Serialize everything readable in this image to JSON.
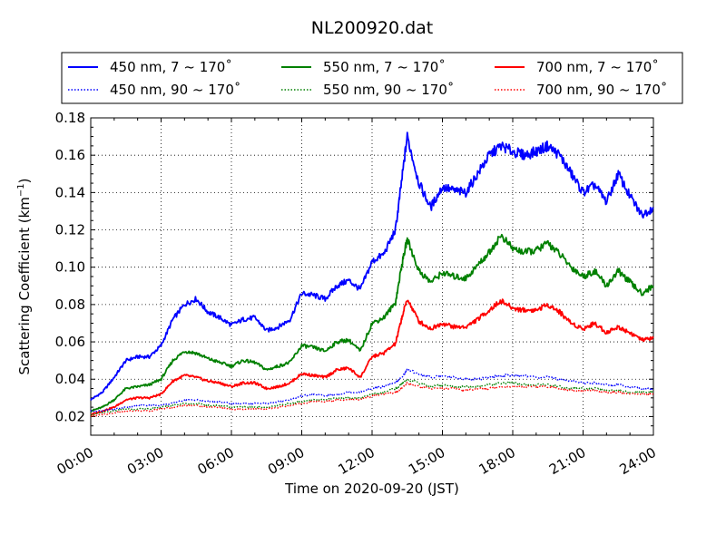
{
  "chart_data": {
    "type": "line",
    "title": "NL200920.dat",
    "xlabel": "Time on 2020-09-20 (JST)",
    "ylabel_main": "Scattering Coefficient (km",
    "ylabel_sup": "−1",
    "ylabel_close": ")",
    "xlim": [
      0,
      24
    ],
    "ylim": [
      0.01,
      0.18
    ],
    "grid": true,
    "legend_placement": "top, above plot",
    "xticks": [
      {
        "value": 0,
        "label": "00:00"
      },
      {
        "value": 3,
        "label": "03:00"
      },
      {
        "value": 6,
        "label": "06:00"
      },
      {
        "value": 9,
        "label": "09:00"
      },
      {
        "value": 12,
        "label": "12:00"
      },
      {
        "value": 15,
        "label": "15:00"
      },
      {
        "value": 18,
        "label": "18:00"
      },
      {
        "value": 21,
        "label": "21:00"
      },
      {
        "value": 24,
        "label": "24:00"
      }
    ],
    "yticks": [
      {
        "value": 0.02,
        "label": "0.02"
      },
      {
        "value": 0.04,
        "label": "0.04"
      },
      {
        "value": 0.06,
        "label": "0.06"
      },
      {
        "value": 0.08,
        "label": "0.08"
      },
      {
        "value": 0.1,
        "label": "0.10"
      },
      {
        "value": 0.12,
        "label": "0.12"
      },
      {
        "value": 0.14,
        "label": "0.14"
      },
      {
        "value": 0.16,
        "label": "0.16"
      },
      {
        "value": 0.18,
        "label": "0.18"
      }
    ],
    "x": [
      0,
      0.5,
      1,
      1.5,
      2,
      2.5,
      3,
      3.5,
      4,
      4.5,
      5,
      5.5,
      6,
      6.5,
      7,
      7.5,
      8,
      8.5,
      9,
      9.5,
      10,
      10.5,
      11,
      11.5,
      12,
      12.5,
      13,
      13.25,
      13.5,
      14,
      14.5,
      15,
      15.5,
      16,
      16.5,
      17,
      17.5,
      18,
      18.5,
      19,
      19.5,
      20,
      20.5,
      21,
      21.5,
      22,
      22.5,
      23,
      23.5,
      24
    ],
    "series": [
      {
        "name": "450 nm, 7 ~ 170°",
        "color": "#0000ff",
        "style": "solid",
        "values": [
          0.029,
          0.033,
          0.041,
          0.05,
          0.052,
          0.052,
          0.058,
          0.072,
          0.08,
          0.083,
          0.076,
          0.073,
          0.069,
          0.072,
          0.073,
          0.066,
          0.068,
          0.072,
          0.086,
          0.085,
          0.083,
          0.09,
          0.093,
          0.088,
          0.103,
          0.107,
          0.12,
          0.145,
          0.17,
          0.145,
          0.132,
          0.143,
          0.141,
          0.14,
          0.15,
          0.16,
          0.165,
          0.162,
          0.16,
          0.162,
          0.165,
          0.16,
          0.15,
          0.14,
          0.144,
          0.135,
          0.15,
          0.138,
          0.128,
          0.132
        ]
      },
      {
        "name": "550 nm, 7 ~ 170°",
        "color": "#008000",
        "style": "solid",
        "values": [
          0.023,
          0.025,
          0.029,
          0.035,
          0.036,
          0.037,
          0.04,
          0.05,
          0.055,
          0.054,
          0.051,
          0.049,
          0.047,
          0.05,
          0.049,
          0.045,
          0.047,
          0.049,
          0.058,
          0.057,
          0.055,
          0.06,
          0.061,
          0.055,
          0.07,
          0.073,
          0.081,
          0.1,
          0.115,
          0.098,
          0.092,
          0.097,
          0.095,
          0.094,
          0.101,
          0.108,
          0.117,
          0.11,
          0.108,
          0.109,
          0.113,
          0.107,
          0.1,
          0.095,
          0.098,
          0.09,
          0.098,
          0.092,
          0.086,
          0.09
        ]
      },
      {
        "name": "700 nm, 7 ~ 170°",
        "color": "#ff0000",
        "style": "solid",
        "values": [
          0.021,
          0.023,
          0.025,
          0.029,
          0.03,
          0.03,
          0.032,
          0.039,
          0.042,
          0.041,
          0.039,
          0.038,
          0.036,
          0.038,
          0.038,
          0.035,
          0.036,
          0.038,
          0.043,
          0.042,
          0.041,
          0.045,
          0.046,
          0.041,
          0.052,
          0.054,
          0.059,
          0.072,
          0.083,
          0.071,
          0.067,
          0.07,
          0.068,
          0.068,
          0.072,
          0.077,
          0.082,
          0.078,
          0.077,
          0.077,
          0.08,
          0.076,
          0.07,
          0.067,
          0.07,
          0.065,
          0.068,
          0.065,
          0.061,
          0.062
        ]
      },
      {
        "name": "450 nm, 90 ~ 170°",
        "color": "#0000ff",
        "style": "dotted",
        "values": [
          0.023,
          0.023,
          0.024,
          0.025,
          0.026,
          0.026,
          0.026,
          0.027,
          0.029,
          0.029,
          0.028,
          0.028,
          0.027,
          0.027,
          0.027,
          0.027,
          0.028,
          0.029,
          0.031,
          0.032,
          0.031,
          0.032,
          0.033,
          0.033,
          0.035,
          0.036,
          0.038,
          0.041,
          0.045,
          0.043,
          0.041,
          0.042,
          0.041,
          0.04,
          0.04,
          0.041,
          0.042,
          0.042,
          0.042,
          0.041,
          0.041,
          0.04,
          0.039,
          0.038,
          0.038,
          0.037,
          0.037,
          0.036,
          0.035,
          0.035
        ]
      },
      {
        "name": "550 nm, 90 ~ 170°",
        "color": "#008000",
        "style": "dotted",
        "values": [
          0.021,
          0.022,
          0.023,
          0.024,
          0.024,
          0.024,
          0.025,
          0.026,
          0.027,
          0.027,
          0.026,
          0.026,
          0.025,
          0.025,
          0.025,
          0.025,
          0.026,
          0.027,
          0.028,
          0.029,
          0.029,
          0.03,
          0.03,
          0.03,
          0.032,
          0.033,
          0.035,
          0.037,
          0.04,
          0.038,
          0.036,
          0.037,
          0.036,
          0.036,
          0.036,
          0.037,
          0.038,
          0.038,
          0.037,
          0.037,
          0.037,
          0.036,
          0.035,
          0.035,
          0.035,
          0.034,
          0.034,
          0.033,
          0.033,
          0.033
        ]
      },
      {
        "name": "700 nm, 90 ~ 170°",
        "color": "#ff0000",
        "style": "dotted",
        "values": [
          0.02,
          0.021,
          0.022,
          0.023,
          0.023,
          0.023,
          0.024,
          0.025,
          0.026,
          0.026,
          0.025,
          0.025,
          0.024,
          0.024,
          0.024,
          0.024,
          0.025,
          0.026,
          0.027,
          0.028,
          0.028,
          0.029,
          0.029,
          0.029,
          0.031,
          0.032,
          0.033,
          0.035,
          0.038,
          0.036,
          0.035,
          0.035,
          0.035,
          0.034,
          0.035,
          0.035,
          0.036,
          0.036,
          0.036,
          0.036,
          0.036,
          0.035,
          0.034,
          0.034,
          0.034,
          0.033,
          0.033,
          0.032,
          0.032,
          0.032
        ]
      }
    ],
    "legend": [
      {
        "label": "450 nm, 7 ~ 170˚",
        "color": "#0000ff",
        "style": "solid"
      },
      {
        "label": "550 nm, 7 ~ 170˚",
        "color": "#008000",
        "style": "solid"
      },
      {
        "label": "700 nm, 7 ~ 170˚",
        "color": "#ff0000",
        "style": "solid"
      },
      {
        "label": "450 nm, 90 ~ 170˚",
        "color": "#0000ff",
        "style": "dotted"
      },
      {
        "label": "550 nm, 90 ~ 170˚",
        "color": "#008000",
        "style": "dotted"
      },
      {
        "label": "700 nm, 90 ~ 170˚",
        "color": "#ff0000",
        "style": "dotted"
      }
    ]
  }
}
